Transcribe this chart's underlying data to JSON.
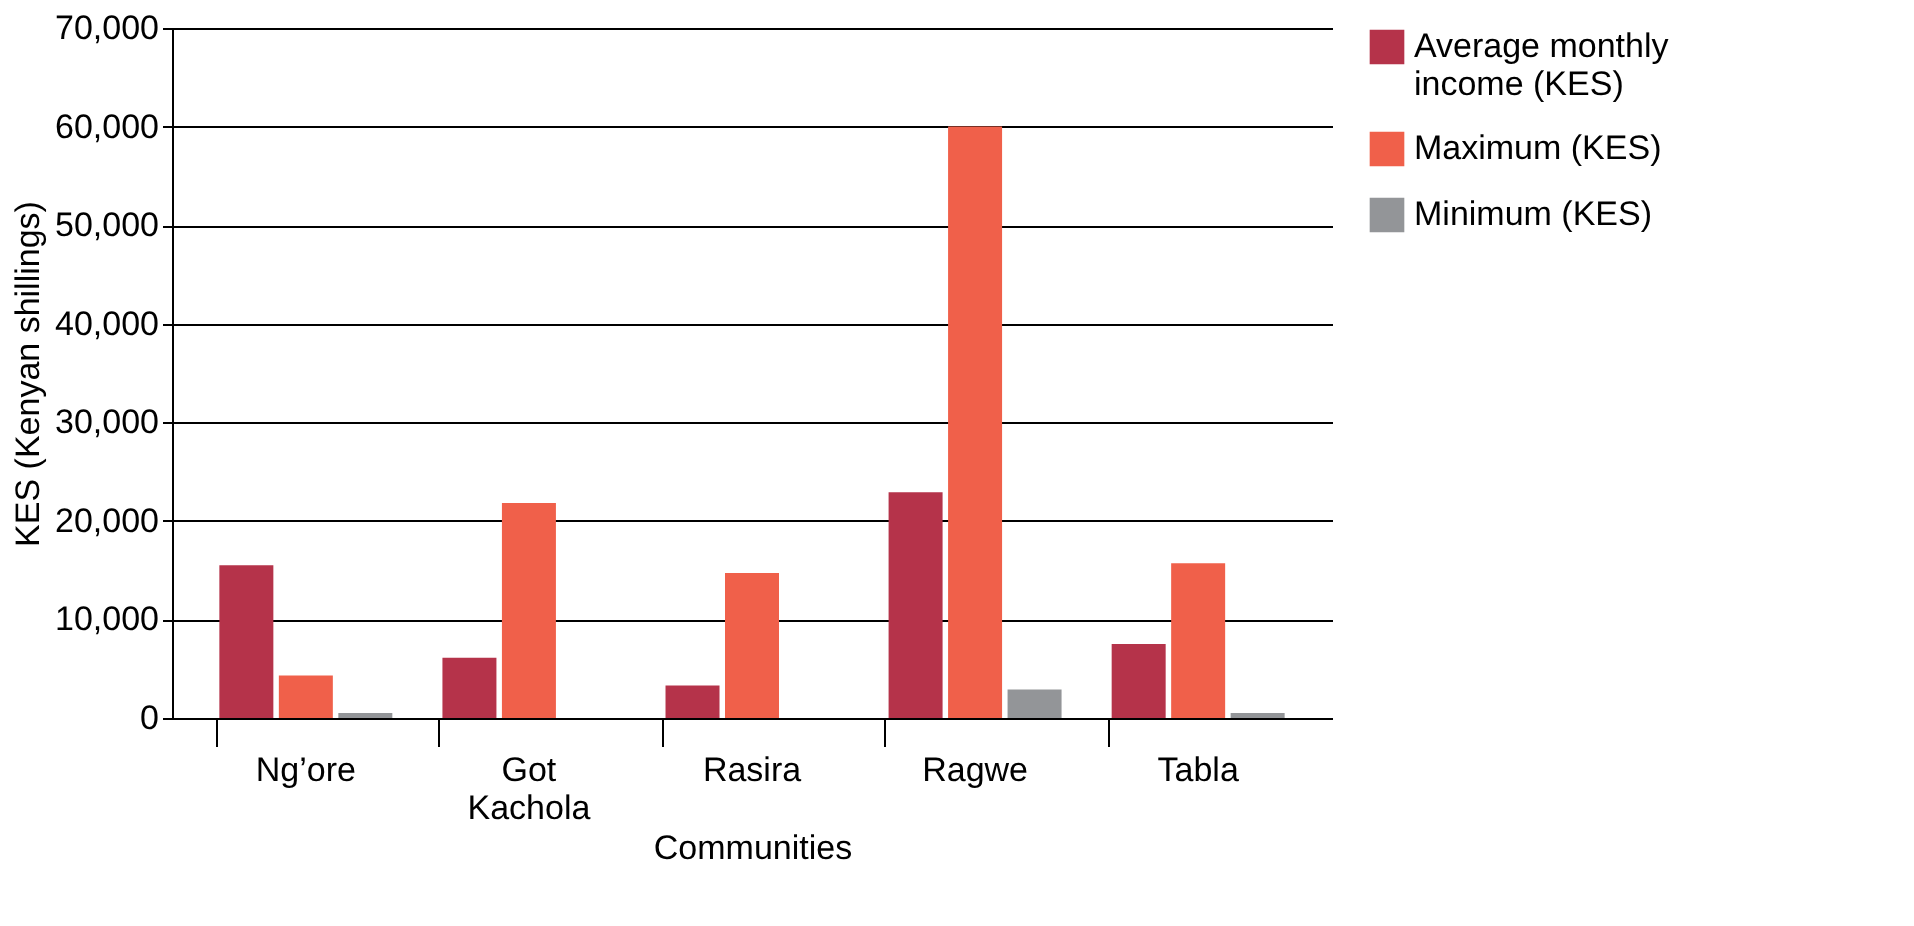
{
  "chart_data": {
    "type": "bar",
    "xlabel": "Communities",
    "ylabel": "KES (Kenyan shillings)",
    "categories": [
      "Ng’ore",
      "Got Kachola",
      "Rasira",
      "Ragwe",
      "Tabla"
    ],
    "series": [
      {
        "name": "Average monthly income (KES)",
        "color": "#b5334a",
        "values": [
          15500,
          6100,
          3300,
          22900,
          7500
        ]
      },
      {
        "name": "Maximum (KES)",
        "color": "#f0604a",
        "values": [
          4300,
          21800,
          14700,
          60000,
          15700
        ]
      },
      {
        "name": "Minimum (KES)",
        "color": "#939598",
        "values": [
          500,
          0,
          0,
          2900,
          500
        ]
      }
    ],
    "ylim": [
      0,
      70000
    ],
    "yticks": [
      0,
      {
        "value": 10000,
        "label": "10,000"
      },
      {
        "value": 20000,
        "label": "20,000"
      },
      {
        "value": 30000,
        "label": "30,000"
      },
      {
        "value": 40000,
        "label": "40,000"
      },
      {
        "value": 50000,
        "label": "50,000"
      },
      {
        "value": 60000,
        "label": "60,000"
      },
      {
        "value": 70000,
        "label": "70,000"
      }
    ],
    "grid": "y",
    "legend": "right"
  }
}
